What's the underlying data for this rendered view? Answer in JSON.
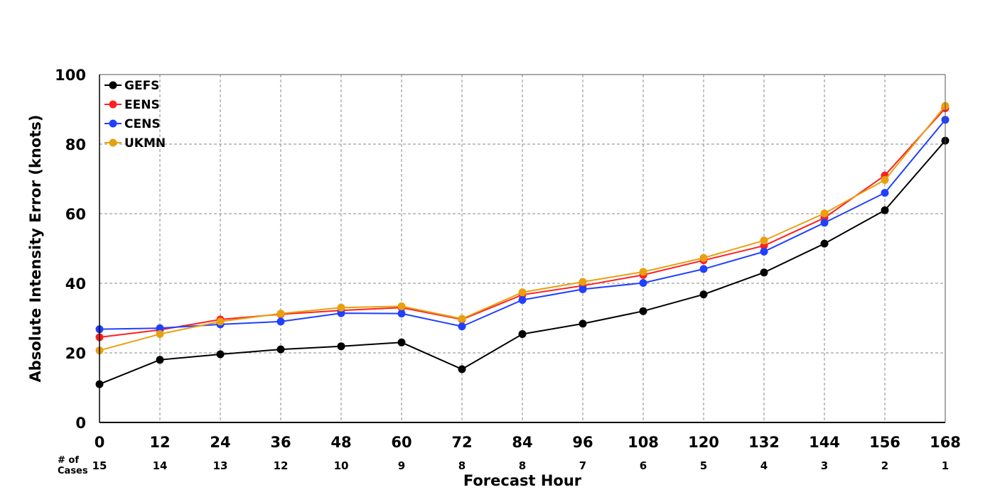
{
  "chart_data": {
    "type": "line",
    "title": "",
    "xlabel": "Forecast Hour",
    "ylabel": "Absolute Intensity Error (knots)",
    "x": [
      0,
      12,
      24,
      36,
      48,
      60,
      72,
      84,
      96,
      108,
      120,
      132,
      144,
      156,
      168
    ],
    "xlim": [
      0,
      168
    ],
    "ylim": [
      0,
      100
    ],
    "yticks": [
      0,
      20,
      40,
      60,
      80,
      100
    ],
    "grid": true,
    "legend_position": "top-left",
    "cases_label": "# of\nCases",
    "cases": [
      15,
      14,
      13,
      12,
      10,
      9,
      8,
      8,
      7,
      6,
      5,
      4,
      3,
      2,
      1
    ],
    "series": [
      {
        "name": "GEFS",
        "color": "#000000",
        "values": [
          11,
          18,
          19.6,
          21,
          21.9,
          23,
          15.3,
          25.4,
          28.4,
          32,
          36.8,
          43.1,
          51.4,
          61,
          81
        ]
      },
      {
        "name": "EENS",
        "color": "#ff2020",
        "values": [
          24.5,
          26.6,
          29.6,
          31.1,
          32.2,
          33,
          29.6,
          36.7,
          39.3,
          42.4,
          46.6,
          50.8,
          58.8,
          71,
          90.3
        ]
      },
      {
        "name": "CENS",
        "color": "#2040ff",
        "values": [
          26.8,
          27.1,
          28.2,
          29,
          31.4,
          31.3,
          27.6,
          35.2,
          38.3,
          40.1,
          44.1,
          49.1,
          57.4,
          66,
          87
        ]
      },
      {
        "name": "UKMN",
        "color": "#e8a010",
        "values": [
          20.7,
          25.4,
          29,
          31.3,
          33,
          33.4,
          29.8,
          37.4,
          40.4,
          43.3,
          47.3,
          52.3,
          60.1,
          69.7,
          91
        ]
      }
    ]
  }
}
